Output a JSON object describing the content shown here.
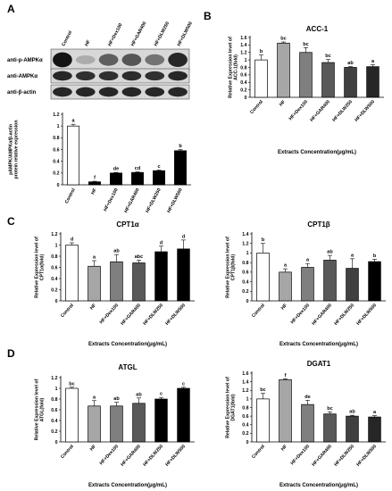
{
  "panel_labels": [
    "A",
    "B",
    "C",
    "D"
  ],
  "blot": {
    "lanes": [
      "Control",
      "HF",
      "HF+Dex100",
      "HF+GAR400",
      "HF+DLW250",
      "HF+DLW500"
    ],
    "rows": [
      {
        "label": "anti-p-AMPKα",
        "intensity": [
          0.95,
          0.15,
          0.55,
          0.6,
          0.45,
          0.85
        ]
      },
      {
        "label": "anti-AMPKα",
        "intensity": [
          0.85,
          0.8,
          0.8,
          0.82,
          0.8,
          0.85
        ]
      },
      {
        "label": "anti-β-actin",
        "intensity": [
          0.85,
          0.85,
          0.85,
          0.85,
          0.85,
          0.85
        ]
      }
    ]
  },
  "chart_data": [
    {
      "id": "A-quant",
      "type": "bar",
      "title": "",
      "categories": [
        "Control",
        "HF",
        "HF+Dex100",
        "HF+GAR400",
        "HF+DLW250",
        "HF+DLW500"
      ],
      "values": [
        1.0,
        0.05,
        0.2,
        0.21,
        0.24,
        0.58
      ],
      "errors": [
        0.03,
        0.01,
        0.01,
        0.01,
        0.01,
        0.02
      ],
      "significance": [
        "a",
        "f",
        "de",
        "cd",
        "c",
        "b"
      ],
      "colors": [
        "#ffffff",
        "#000000",
        "#000000",
        "#000000",
        "#000000",
        "#000000"
      ],
      "ylabel": "pAMPK/AMPKα/β-actin protein relative expression",
      "xlabel": "",
      "ylim": [
        0,
        1.2
      ],
      "yticks": [
        0,
        0.2,
        0.4,
        0.6,
        0.8,
        1,
        1.2
      ]
    },
    {
      "id": "B-ACC1",
      "type": "bar",
      "title": "ACC-1",
      "categories": [
        "Control",
        "HF",
        "HF+Dex100",
        "HF+GAR400",
        "HF+DLW250",
        "HF+DLW500"
      ],
      "values": [
        1.0,
        1.45,
        1.2,
        0.93,
        0.8,
        0.82
      ],
      "errors": [
        0.13,
        0.03,
        0.13,
        0.08,
        0.02,
        0.05
      ],
      "significance": [
        "b",
        "bc",
        "bc",
        "bc",
        "ab",
        "a"
      ],
      "colors": [
        "#ffffff",
        "#a6a6a6",
        "#7f7f7f",
        "#595959",
        "#404040",
        "#262626"
      ],
      "ylabel": "Relative Expression level of ACC-1(fold)",
      "xlabel": "Extracts Concentration(μg/mL)",
      "ylim": [
        0,
        1.6
      ],
      "yticks": [
        0,
        0.2,
        0.4,
        0.6,
        0.8,
        1,
        1.2,
        1.4,
        1.6
      ]
    },
    {
      "id": "C-CPT1a",
      "type": "bar",
      "title": "CPT1α",
      "categories": [
        "Control",
        "HF",
        "HF+Dex100",
        "HF+GAR400",
        "HF+DLW250",
        "HF+DLW500"
      ],
      "values": [
        1.0,
        0.62,
        0.7,
        0.68,
        0.88,
        0.93
      ],
      "errors": [
        0.04,
        0.1,
        0.13,
        0.05,
        0.1,
        0.16
      ],
      "significance": [
        "d",
        "a",
        "ab",
        "abc",
        "d",
        "d"
      ],
      "colors": [
        "#ffffff",
        "#a6a6a6",
        "#7f7f7f",
        "#595959",
        "#000000",
        "#000000"
      ],
      "ylabel": "Relative Expression level of CPT1α(fold)",
      "xlabel": "Extracts Concentration(μg/mL)",
      "ylim": [
        0,
        1.2
      ],
      "yticks": [
        0,
        0.2,
        0.4,
        0.6,
        0.8,
        1,
        1.2
      ]
    },
    {
      "id": "C-CPT1b",
      "type": "bar",
      "title": "CPT1β",
      "categories": [
        "Control",
        "HF",
        "HF+Dex100",
        "HF+GAR400",
        "HF+DLW250",
        "HF+DLW500"
      ],
      "values": [
        1.0,
        0.6,
        0.7,
        0.85,
        0.68,
        0.82
      ],
      "errors": [
        0.2,
        0.07,
        0.08,
        0.1,
        0.2,
        0.05
      ],
      "significance": [
        "b",
        "a",
        "a",
        "ab",
        "a",
        "b"
      ],
      "colors": [
        "#ffffff",
        "#a6a6a6",
        "#7f7f7f",
        "#595959",
        "#404040",
        "#000000"
      ],
      "ylabel": "Relative Expression level of CPT1β(fold)",
      "xlabel": "Extracts Concentration(μg/mL)",
      "ylim": [
        0,
        1.4
      ],
      "yticks": [
        0,
        0.2,
        0.4,
        0.6,
        0.8,
        1,
        1.2,
        1.4
      ]
    },
    {
      "id": "D-ATGL",
      "type": "bar",
      "title": "ATGL",
      "categories": [
        "Control",
        "HF",
        "HF+Dex100",
        "HF+GAR400",
        "HF+DLW250",
        "HF+DLW500"
      ],
      "values": [
        1.0,
        0.67,
        0.67,
        0.72,
        0.8,
        1.0
      ],
      "errors": [
        0.02,
        0.1,
        0.07,
        0.1,
        0.03,
        0.02
      ],
      "significance": [
        "bc",
        "a",
        "ab",
        "ab",
        "c",
        "c"
      ],
      "colors": [
        "#ffffff",
        "#a6a6a6",
        "#7f7f7f",
        "#595959",
        "#000000",
        "#000000"
      ],
      "ylabel": "Relative Expression level of ATGL(fold)",
      "xlabel": "Extracts Concentration(μg/mL)",
      "ylim": [
        0,
        1.2
      ],
      "yticks": [
        0,
        0.2,
        0.4,
        0.6,
        0.8,
        1,
        1.2
      ]
    },
    {
      "id": "D-DGAT1",
      "type": "bar",
      "title": "DGAT1",
      "categories": [
        "Control",
        "HF",
        "HF+Dex100",
        "HF+GAR400",
        "HF+DLW250",
        "HF+DLW500"
      ],
      "values": [
        1.0,
        1.45,
        0.87,
        0.65,
        0.6,
        0.58
      ],
      "errors": [
        0.13,
        0.02,
        0.1,
        0.05,
        0.02,
        0.03
      ],
      "significance": [
        "bc",
        "f",
        "de",
        "bc",
        "ab",
        "a"
      ],
      "colors": [
        "#ffffff",
        "#a6a6a6",
        "#7f7f7f",
        "#595959",
        "#404040",
        "#262626"
      ],
      "ylabel": "Relative Expression level of DGAT1(fold)",
      "xlabel": "Extracts Concentration(μg/mL)",
      "ylim": [
        0,
        1.6
      ],
      "yticks": [
        0,
        0.2,
        0.4,
        0.6,
        0.8,
        1,
        1.2,
        1.4,
        1.6
      ]
    }
  ]
}
